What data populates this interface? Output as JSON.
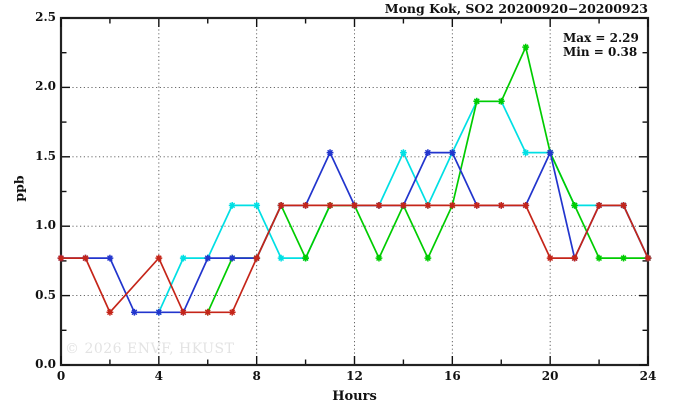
{
  "title": "Mong Kok, SO2 20200920−20200923",
  "watermark": "© 2026 ENVF, HKUST",
  "annotations": {
    "max_label": "Max = 2.29",
    "min_label": "Min = 0.38"
  },
  "chart_data": {
    "type": "line",
    "title": "Mong Kok, SO2 20200920−20200923",
    "xlabel": "Hours",
    "ylabel": "ppb",
    "xlim": [
      0,
      24
    ],
    "ylim": [
      0,
      2.5
    ],
    "x_major_ticks": [
      0,
      4,
      8,
      12,
      16,
      20,
      24
    ],
    "x_tick_labels": [
      "0",
      "4",
      "8",
      "12",
      "16",
      "20",
      "24"
    ],
    "x_minor_step": 2,
    "y_major_ticks": [
      0,
      0.5,
      1,
      1.5,
      2,
      2.5
    ],
    "y_tick_labels": [
      "0.0",
      "0.5",
      "1.0",
      "1.5",
      "2.0",
      "2.5"
    ],
    "y_minor_step": 0.25,
    "grid": "dotted lines at major ticks, full frame with inward ticks",
    "legend_position": "none",
    "max": 2.29,
    "min": 0.38,
    "x": [
      0,
      1,
      2,
      3,
      4,
      5,
      6,
      7,
      8,
      9,
      10,
      11,
      12,
      13,
      14,
      15,
      16,
      17,
      18,
      19,
      20,
      21,
      22,
      23,
      24
    ],
    "series": [
      {
        "name": "cyan",
        "color": "#00dfe4",
        "values": [
          null,
          null,
          null,
          null,
          0.38,
          0.77,
          0.77,
          1.15,
          1.15,
          0.77,
          0.77,
          1.15,
          1.15,
          1.15,
          1.53,
          1.15,
          1.53,
          1.9,
          1.9,
          1.53,
          1.53,
          1.15,
          1.15,
          1.15,
          0.77
        ]
      },
      {
        "name": "green",
        "color": "#00cc00",
        "values": [
          null,
          null,
          null,
          null,
          null,
          null,
          0.38,
          0.77,
          0.77,
          1.15,
          0.77,
          1.15,
          1.15,
          0.77,
          1.15,
          0.77,
          1.15,
          1.9,
          1.9,
          2.29,
          1.53,
          1.15,
          0.77,
          0.77,
          0.77
        ]
      },
      {
        "name": "blue",
        "color": "#2235cd",
        "values": [
          0.77,
          0.77,
          0.77,
          0.38,
          0.38,
          0.38,
          0.77,
          0.77,
          0.77,
          1.15,
          1.15,
          1.53,
          1.15,
          1.15,
          1.15,
          1.53,
          1.53,
          1.15,
          1.15,
          1.15,
          1.53,
          0.77,
          1.15,
          1.15,
          0.77
        ]
      },
      {
        "name": "red",
        "color": "#c52519",
        "values": [
          0.77,
          0.77,
          0.38,
          null,
          0.77,
          0.38,
          0.38,
          0.38,
          0.77,
          1.15,
          1.15,
          1.15,
          1.15,
          1.15,
          1.15,
          1.15,
          1.15,
          1.15,
          1.15,
          1.15,
          0.77,
          0.77,
          1.15,
          1.15,
          0.77
        ]
      }
    ]
  }
}
